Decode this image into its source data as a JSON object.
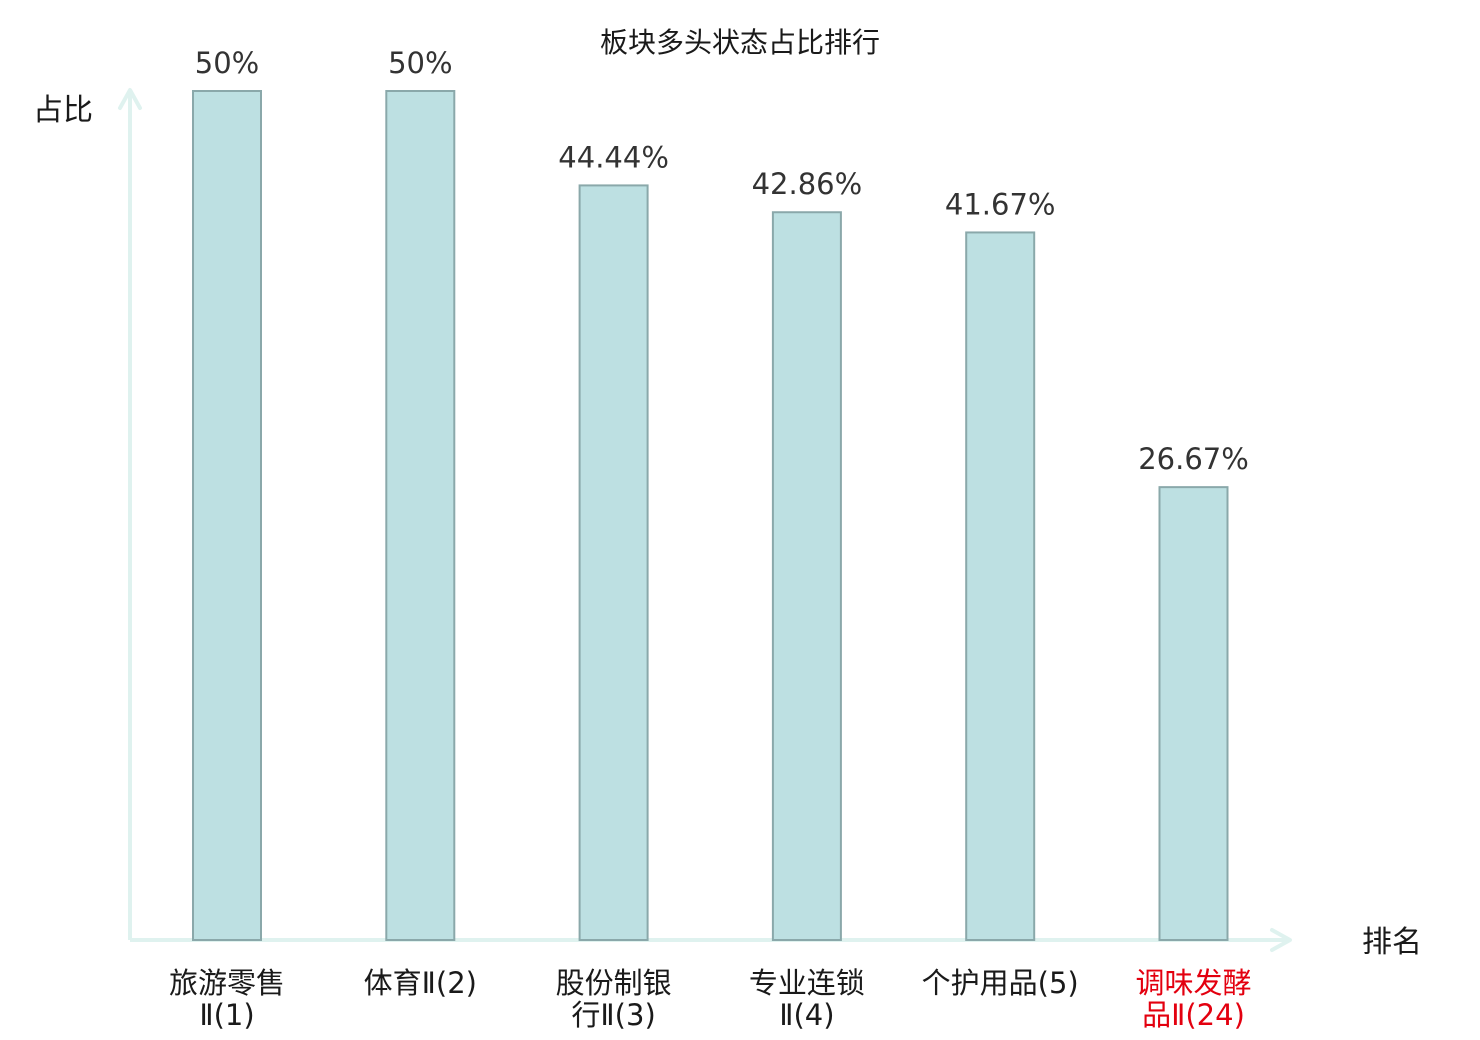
{
  "chart_data": {
    "type": "bar",
    "title": "板块多头状态占比排行",
    "ylabel": "占比",
    "xlabel": "排名",
    "categories": [
      [
        "旅游零售",
        "Ⅱ(1)"
      ],
      [
        "体育Ⅱ(2)"
      ],
      [
        "股份制银",
        "行Ⅱ(3)"
      ],
      [
        "专业连锁",
        "Ⅱ(4)"
      ],
      [
        "个护用品(5)"
      ],
      [
        "调味发酵",
        "品Ⅱ(24)"
      ]
    ],
    "values": [
      50,
      50,
      44.44,
      42.86,
      41.67,
      26.67
    ],
    "value_labels": [
      "50%",
      "50%",
      "44.44%",
      "42.86%",
      "41.67%",
      "26.67%"
    ],
    "highlighted": [
      false,
      false,
      false,
      false,
      false,
      true
    ],
    "ylim": [
      0,
      50
    ],
    "grid": false,
    "legend": "none"
  },
  "colors": {
    "bar_fill": "#bde0e2",
    "bar_stroke": "#8aa8aa",
    "axis": "#dff2ef",
    "label_normal": "#1a1a1a",
    "label_highlight": "#e3000f",
    "value_text": "#333333"
  }
}
